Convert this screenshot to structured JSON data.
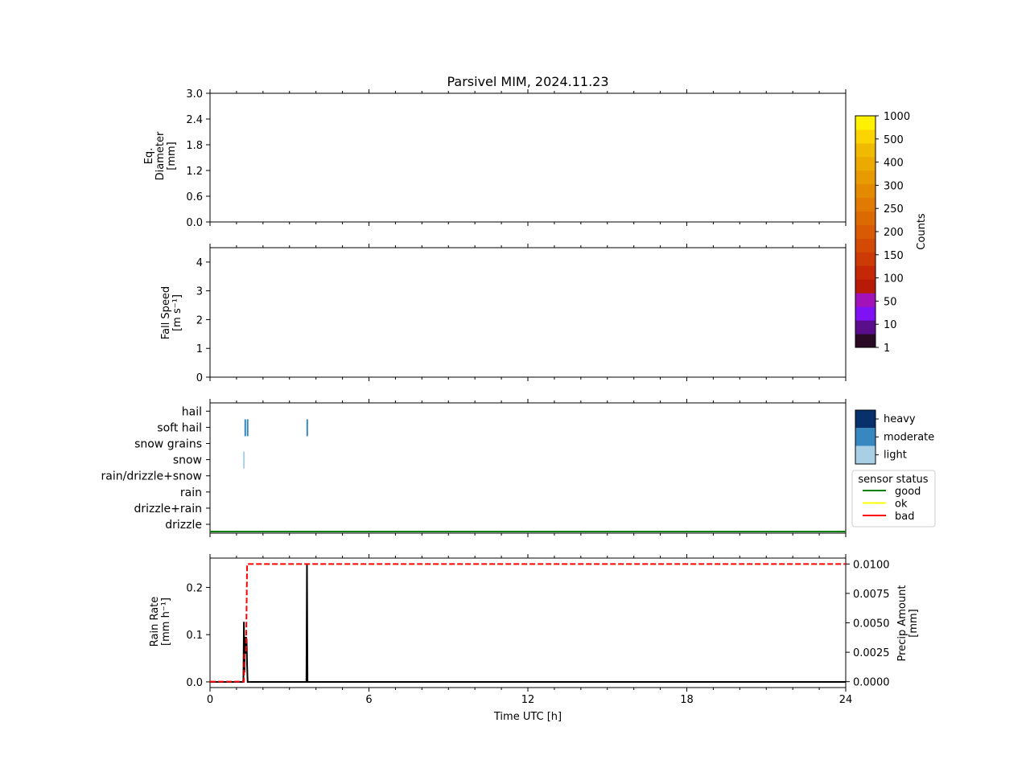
{
  "title": "Parsivel MIM, 2024.11.23",
  "xlabel": "Time UTC [h]",
  "x_ticks": [
    "0",
    "6",
    "12",
    "18",
    "24"
  ],
  "colorbar": {
    "label": "Counts",
    "tick_labels": [
      "1",
      "10",
      "50",
      "100",
      "150",
      "200",
      "250",
      "300",
      "400",
      "500",
      "1000"
    ],
    "colors": [
      "#2a0a24",
      "#5a0e8c",
      "#7f12f5",
      "#a112b8",
      "#b81a08",
      "#c42806",
      "#cc3a05",
      "#d24a04",
      "#d85a03",
      "#dc6a02",
      "#e07a02",
      "#e48a01",
      "#e89a01",
      "#ecaa00",
      "#f0ba00",
      "#fcd400",
      "#fff200"
    ]
  },
  "chart_data": [
    {
      "type": "heatmap",
      "ylabel": [
        "Eq.",
        "Diameter",
        "[mm]"
      ],
      "xlim": [
        0,
        24
      ],
      "ylim": [
        0,
        3.0
      ],
      "y_ticks": [
        "0.0",
        "0.6",
        "1.2",
        "1.8",
        "2.4",
        "3.0"
      ],
      "y_values": [
        0,
        0.6,
        1.2,
        1.8,
        2.4,
        3.0
      ],
      "values": []
    },
    {
      "type": "heatmap",
      "ylabel": [
        "Fall Speed",
        "[m s⁻¹]"
      ],
      "xlim": [
        0,
        24
      ],
      "ylim": [
        0,
        4.5
      ],
      "y_ticks": [
        "0",
        "1",
        "2",
        "3",
        "4"
      ],
      "y_values": [
        0,
        1,
        2,
        3,
        4
      ],
      "values": []
    },
    {
      "type": "heatmap",
      "categories": [
        "drizzle",
        "drizzle+rain",
        "rain",
        "rain/drizzle+snow",
        "snow",
        "snow grains",
        "soft hail",
        "hail"
      ],
      "xlim": [
        0,
        24
      ],
      "intensity_legend": [
        "heavy",
        "moderate",
        "light"
      ],
      "intensity_colors": {
        "heavy": "#08306b",
        "moderate": "#3787c0",
        "light": "#a9cfe5"
      },
      "events": [
        {
          "t": 1.33,
          "category": "soft hail",
          "intensity": "moderate"
        },
        {
          "t": 1.42,
          "category": "soft hail",
          "intensity": "moderate"
        },
        {
          "t": 3.67,
          "category": "soft hail",
          "intensity": "moderate"
        },
        {
          "t": 1.28,
          "category": "snow",
          "intensity": "light"
        }
      ],
      "sensor_status_legend": {
        "title": "sensor status",
        "entries": [
          {
            "label": "good",
            "color": "#008000"
          },
          {
            "label": "ok",
            "color": "#ffff00"
          },
          {
            "label": "bad",
            "color": "#ff0000"
          }
        ]
      },
      "sensor_status_line": {
        "status": "good",
        "t_start": 0,
        "t_end": 24
      }
    },
    {
      "type": "line",
      "ylabel": [
        "Rain Rate",
        "[mm h⁻¹]"
      ],
      "y2label": [
        "Precip Amount",
        "[mm]"
      ],
      "xlim": [
        0,
        24
      ],
      "ylim": [
        -0.012,
        0.262
      ],
      "y2lim": [
        -0.0005,
        0.0105
      ],
      "y_ticks": [
        "0.0",
        "0.1",
        "0.2"
      ],
      "y_values": [
        0,
        0.1,
        0.2
      ],
      "y2_ticks": [
        "0.0000",
        "0.0025",
        "0.0050",
        "0.0075",
        "0.0100"
      ],
      "y2_values": [
        0,
        0.0025,
        0.005,
        0.0075,
        0.01
      ],
      "series": [
        {
          "axis": "left",
          "color": "#000000",
          "points": [
            [
              0,
              0
            ],
            [
              1.26,
              0
            ],
            [
              1.28,
              0.127
            ],
            [
              1.3,
              0.02
            ],
            [
              1.32,
              0.095
            ],
            [
              1.34,
              0.06
            ],
            [
              1.36,
              0.095
            ],
            [
              1.38,
              0.09
            ],
            [
              1.4,
              0.035
            ],
            [
              1.42,
              0
            ],
            [
              3.64,
              0
            ],
            [
              3.66,
              0.248
            ],
            [
              3.68,
              0
            ],
            [
              24,
              0
            ]
          ]
        },
        {
          "axis": "right",
          "color": "#ff0000",
          "style": "dashed",
          "points": [
            [
              0,
              0
            ],
            [
              1.28,
              0
            ],
            [
              1.3,
              0.0023
            ],
            [
              1.36,
              0.0026
            ],
            [
              1.4,
              0.01
            ],
            [
              24,
              0.01
            ]
          ]
        }
      ]
    }
  ]
}
